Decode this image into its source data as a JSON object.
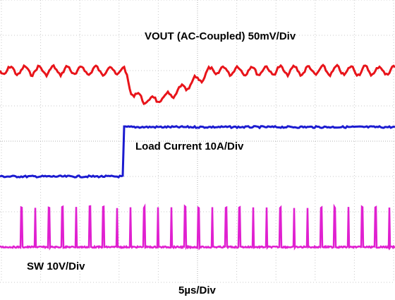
{
  "traces": {
    "vout": "VOUT (AC-Coupled) 50mV/Div",
    "load": "Load Current 10A/Div",
    "sw": "SW 10V/Div"
  },
  "timebase": "5µs/Div"
}
